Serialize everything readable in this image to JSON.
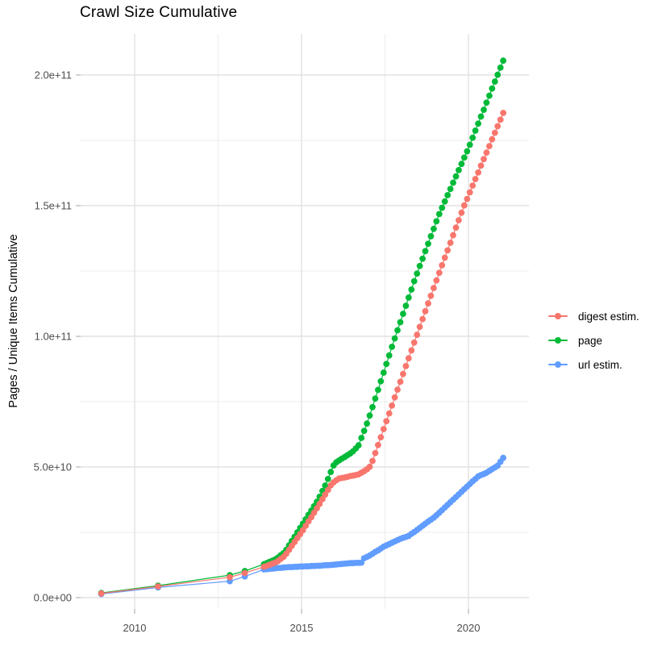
{
  "title": "Crawl Size Cumulative",
  "y_axis": {
    "label": "Pages / Unique Items Cumulative",
    "ticks": [
      {
        "v": 0,
        "label": "0.0e+00"
      },
      {
        "v": 50,
        "label": "5.0e+10"
      },
      {
        "v": 100,
        "label": "1.0e+11"
      },
      {
        "v": 150,
        "label": "1.5e+11"
      },
      {
        "v": 200,
        "label": "2.0e+11"
      }
    ],
    "minor_values": [
      25,
      75,
      125,
      175
    ]
  },
  "x_axis": {
    "ticks": [
      {
        "v": 2010,
        "label": "2010"
      },
      {
        "v": 2015,
        "label": "2015"
      },
      {
        "v": 2020,
        "label": "2020"
      }
    ],
    "minor_values": [
      2012.5,
      2017.5
    ]
  },
  "legend": {
    "items": [
      {
        "label": "digest estim.",
        "color": "#F8766D"
      },
      {
        "label": "page",
        "color": "#00BA38"
      },
      {
        "label": "url estim.",
        "color": "#619CFF"
      }
    ]
  },
  "colors": {
    "grid_major": "#E2E2E2",
    "grid_minor": "#EDEDED",
    "tick_mark": "#B3B3B3",
    "tick_text": "#4D4D4D",
    "title_text": "#000000"
  },
  "chart_data": {
    "type": "scatter",
    "title": "Crawl Size Cumulative",
    "xlabel": "",
    "ylabel": "Pages / Unique Items Cumulative",
    "x_unit": "year",
    "y_unit": "items, billions (1e9)",
    "xlim": [
      2008.4,
      2021.8
    ],
    "ylim_billion": [
      0,
      213
    ],
    "grid": true,
    "legend_position": "right",
    "point_with_line": true,
    "draw_order": [
      "page",
      "url estim.",
      "digest estim."
    ],
    "series": [
      {
        "name": "page",
        "color": "#00BA38",
        "points": [
          [
            2009.0,
            1.8
          ],
          [
            2010.7,
            4.6
          ],
          [
            2012.85,
            8.6
          ],
          [
            2013.3,
            10.2
          ],
          [
            2013.875,
            12.8
          ],
          [
            2013.958,
            13.2
          ],
          [
            2014.042,
            13.7
          ],
          [
            2014.125,
            14.1
          ],
          [
            2014.208,
            14.6
          ],
          [
            2014.292,
            15.3
          ],
          [
            2014.375,
            16.2
          ],
          [
            2014.458,
            17.0
          ],
          [
            2014.542,
            18.3
          ],
          [
            2014.625,
            20.0
          ],
          [
            2014.708,
            21.7
          ],
          [
            2014.792,
            23.3
          ],
          [
            2014.875,
            25.0
          ],
          [
            2014.958,
            26.7
          ],
          [
            2015.042,
            28.3
          ],
          [
            2015.125,
            30.0
          ],
          [
            2015.208,
            31.7
          ],
          [
            2015.292,
            33.3
          ],
          [
            2015.375,
            35.0
          ],
          [
            2015.458,
            36.7
          ],
          [
            2015.542,
            38.6
          ],
          [
            2015.625,
            40.8
          ],
          [
            2015.708,
            42.9
          ],
          [
            2015.792,
            45.4
          ],
          [
            2015.875,
            48.1
          ],
          [
            2015.958,
            50.6
          ],
          [
            2016.042,
            51.8
          ],
          [
            2016.125,
            52.5
          ],
          [
            2016.208,
            53.2
          ],
          [
            2016.292,
            53.8
          ],
          [
            2016.375,
            54.5
          ],
          [
            2016.458,
            55.2
          ],
          [
            2016.542,
            56.0
          ],
          [
            2016.625,
            57.1
          ],
          [
            2016.708,
            58.3
          ],
          [
            2016.792,
            61.1
          ],
          [
            2016.875,
            63.8
          ],
          [
            2016.958,
            66.6
          ],
          [
            2017.042,
            69.7
          ],
          [
            2017.125,
            72.9
          ],
          [
            2017.208,
            76.2
          ],
          [
            2017.292,
            79.5
          ],
          [
            2017.375,
            82.8
          ],
          [
            2017.458,
            86.1
          ],
          [
            2017.542,
            89.4
          ],
          [
            2017.625,
            92.7
          ],
          [
            2017.708,
            96.0
          ],
          [
            2017.792,
            99.2
          ],
          [
            2017.875,
            102.3
          ],
          [
            2017.958,
            105.4
          ],
          [
            2018.042,
            108.6
          ],
          [
            2018.125,
            111.7
          ],
          [
            2018.208,
            114.8
          ],
          [
            2018.292,
            117.9
          ],
          [
            2018.375,
            121.1
          ],
          [
            2018.458,
            124.0
          ],
          [
            2018.542,
            126.9
          ],
          [
            2018.625,
            129.7
          ],
          [
            2018.708,
            132.6
          ],
          [
            2018.792,
            135.4
          ],
          [
            2018.875,
            138.3
          ],
          [
            2018.958,
            141.1
          ],
          [
            2019.042,
            144.0
          ],
          [
            2019.125,
            146.8
          ],
          [
            2019.208,
            149.2
          ],
          [
            2019.292,
            151.6
          ],
          [
            2019.375,
            154.0
          ],
          [
            2019.458,
            156.4
          ],
          [
            2019.542,
            158.8
          ],
          [
            2019.625,
            161.2
          ],
          [
            2019.708,
            163.6
          ],
          [
            2019.792,
            166.0
          ],
          [
            2019.875,
            168.4
          ],
          [
            2019.958,
            170.8
          ],
          [
            2020.042,
            173.3
          ],
          [
            2020.125,
            176.0
          ],
          [
            2020.208,
            178.7
          ],
          [
            2020.292,
            181.4
          ],
          [
            2020.375,
            184.1
          ],
          [
            2020.458,
            186.7
          ],
          [
            2020.542,
            189.4
          ],
          [
            2020.625,
            192.1
          ],
          [
            2020.708,
            194.8
          ],
          [
            2020.792,
            197.5
          ],
          [
            2020.875,
            200.1
          ],
          [
            2020.958,
            202.8
          ],
          [
            2021.042,
            205.5
          ]
        ]
      },
      {
        "name": "url estim.",
        "color": "#619CFF",
        "points": [
          [
            2009.0,
            1.4
          ],
          [
            2010.7,
            3.9
          ],
          [
            2012.85,
            6.3
          ],
          [
            2013.3,
            8.1
          ],
          [
            2013.875,
            10.8
          ],
          [
            2013.958,
            10.9
          ],
          [
            2014.042,
            11.0
          ],
          [
            2014.125,
            11.1
          ],
          [
            2014.208,
            11.2
          ],
          [
            2014.292,
            11.4
          ],
          [
            2014.375,
            11.4
          ],
          [
            2014.458,
            11.5
          ],
          [
            2014.542,
            11.6
          ],
          [
            2014.625,
            11.7
          ],
          [
            2014.708,
            11.7
          ],
          [
            2014.792,
            11.8
          ],
          [
            2014.875,
            11.8
          ],
          [
            2014.958,
            11.9
          ],
          [
            2015.042,
            11.9
          ],
          [
            2015.125,
            12.0
          ],
          [
            2015.208,
            12.0
          ],
          [
            2015.292,
            12.1
          ],
          [
            2015.375,
            12.1
          ],
          [
            2015.458,
            12.2
          ],
          [
            2015.542,
            12.2
          ],
          [
            2015.625,
            12.3
          ],
          [
            2015.708,
            12.4
          ],
          [
            2015.792,
            12.4
          ],
          [
            2015.875,
            12.5
          ],
          [
            2015.958,
            12.6
          ],
          [
            2016.042,
            12.7
          ],
          [
            2016.125,
            12.8
          ],
          [
            2016.208,
            12.9
          ],
          [
            2016.292,
            13.0
          ],
          [
            2016.375,
            13.1
          ],
          [
            2016.458,
            13.2
          ],
          [
            2016.542,
            13.2
          ],
          [
            2016.625,
            13.3
          ],
          [
            2016.708,
            13.3
          ],
          [
            2016.792,
            13.4
          ],
          [
            2016.875,
            15.1
          ],
          [
            2016.958,
            15.6
          ],
          [
            2017.042,
            16.1
          ],
          [
            2017.125,
            16.8
          ],
          [
            2017.208,
            17.5
          ],
          [
            2017.292,
            18.1
          ],
          [
            2017.375,
            18.8
          ],
          [
            2017.458,
            19.5
          ],
          [
            2017.542,
            20.0
          ],
          [
            2017.625,
            20.5
          ],
          [
            2017.708,
            21.0
          ],
          [
            2017.792,
            21.5
          ],
          [
            2017.875,
            22.0
          ],
          [
            2017.958,
            22.5
          ],
          [
            2018.042,
            22.9
          ],
          [
            2018.125,
            23.2
          ],
          [
            2018.208,
            23.6
          ],
          [
            2018.292,
            24.4
          ],
          [
            2018.375,
            25.1
          ],
          [
            2018.458,
            25.9
          ],
          [
            2018.542,
            26.7
          ],
          [
            2018.625,
            27.5
          ],
          [
            2018.708,
            28.3
          ],
          [
            2018.792,
            29.1
          ],
          [
            2018.875,
            29.8
          ],
          [
            2018.958,
            30.6
          ],
          [
            2019.042,
            31.5
          ],
          [
            2019.125,
            32.5
          ],
          [
            2019.208,
            33.5
          ],
          [
            2019.292,
            34.5
          ],
          [
            2019.375,
            35.5
          ],
          [
            2019.458,
            36.5
          ],
          [
            2019.542,
            37.5
          ],
          [
            2019.625,
            38.5
          ],
          [
            2019.708,
            39.5
          ],
          [
            2019.792,
            40.5
          ],
          [
            2019.875,
            41.5
          ],
          [
            2019.958,
            42.5
          ],
          [
            2020.042,
            43.5
          ],
          [
            2020.125,
            44.5
          ],
          [
            2020.208,
            45.4
          ],
          [
            2020.292,
            46.4
          ],
          [
            2020.375,
            46.9
          ],
          [
            2020.458,
            47.3
          ],
          [
            2020.542,
            47.8
          ],
          [
            2020.625,
            48.5
          ],
          [
            2020.708,
            49.2
          ],
          [
            2020.792,
            49.8
          ],
          [
            2020.875,
            50.5
          ],
          [
            2020.958,
            52.0
          ],
          [
            2021.042,
            53.5
          ]
        ]
      },
      {
        "name": "digest estim.",
        "color": "#F8766D",
        "points": [
          [
            2009.0,
            1.6
          ],
          [
            2010.7,
            4.3
          ],
          [
            2012.85,
            7.8
          ],
          [
            2013.3,
            9.4
          ],
          [
            2013.875,
            11.8
          ],
          [
            2013.958,
            12.2
          ],
          [
            2014.042,
            12.6
          ],
          [
            2014.125,
            13.0
          ],
          [
            2014.208,
            13.4
          ],
          [
            2014.292,
            14.0
          ],
          [
            2014.375,
            14.8
          ],
          [
            2014.458,
            15.6
          ],
          [
            2014.542,
            16.8
          ],
          [
            2014.625,
            18.3
          ],
          [
            2014.708,
            19.8
          ],
          [
            2014.792,
            21.3
          ],
          [
            2014.875,
            22.8
          ],
          [
            2014.958,
            24.3
          ],
          [
            2015.042,
            25.8
          ],
          [
            2015.125,
            27.5
          ],
          [
            2015.208,
            29.2
          ],
          [
            2015.292,
            30.8
          ],
          [
            2015.375,
            32.5
          ],
          [
            2015.458,
            34.2
          ],
          [
            2015.542,
            35.9
          ],
          [
            2015.625,
            37.7
          ],
          [
            2015.708,
            39.4
          ],
          [
            2015.792,
            41.2
          ],
          [
            2015.875,
            43.0
          ],
          [
            2015.958,
            44.1
          ],
          [
            2016.042,
            44.9
          ],
          [
            2016.125,
            45.6
          ],
          [
            2016.208,
            45.8
          ],
          [
            2016.292,
            46.0
          ],
          [
            2016.375,
            46.2
          ],
          [
            2016.458,
            46.5
          ],
          [
            2016.542,
            46.7
          ],
          [
            2016.625,
            46.9
          ],
          [
            2016.708,
            47.2
          ],
          [
            2016.792,
            47.8
          ],
          [
            2016.875,
            48.4
          ],
          [
            2016.958,
            49.1
          ],
          [
            2017.042,
            50.1
          ],
          [
            2017.125,
            52.3
          ],
          [
            2017.208,
            55.3
          ],
          [
            2017.292,
            58.4
          ],
          [
            2017.375,
            61.4
          ],
          [
            2017.458,
            64.5
          ],
          [
            2017.542,
            67.5
          ],
          [
            2017.625,
            70.5
          ],
          [
            2017.708,
            73.5
          ],
          [
            2017.792,
            76.6
          ],
          [
            2017.875,
            79.6
          ],
          [
            2017.958,
            82.6
          ],
          [
            2018.042,
            85.6
          ],
          [
            2018.125,
            88.6
          ],
          [
            2018.208,
            91.6
          ],
          [
            2018.292,
            94.6
          ],
          [
            2018.375,
            97.6
          ],
          [
            2018.458,
            100.6
          ],
          [
            2018.542,
            103.6
          ],
          [
            2018.625,
            106.6
          ],
          [
            2018.708,
            109.6
          ],
          [
            2018.792,
            112.6
          ],
          [
            2018.875,
            115.5
          ],
          [
            2018.958,
            118.5
          ],
          [
            2019.042,
            121.4
          ],
          [
            2019.125,
            124.3
          ],
          [
            2019.208,
            127.2
          ],
          [
            2019.292,
            130.1
          ],
          [
            2019.375,
            132.9
          ],
          [
            2019.458,
            135.8
          ],
          [
            2019.542,
            138.7
          ],
          [
            2019.625,
            141.6
          ],
          [
            2019.708,
            144.4
          ],
          [
            2019.792,
            147.3
          ],
          [
            2019.875,
            150.1
          ],
          [
            2019.958,
            152.6
          ],
          [
            2020.042,
            155.1
          ],
          [
            2020.125,
            157.7
          ],
          [
            2020.208,
            160.2
          ],
          [
            2020.292,
            162.7
          ],
          [
            2020.375,
            165.3
          ],
          [
            2020.458,
            167.8
          ],
          [
            2020.542,
            170.3
          ],
          [
            2020.625,
            172.8
          ],
          [
            2020.708,
            175.4
          ],
          [
            2020.792,
            177.9
          ],
          [
            2020.875,
            180.4
          ],
          [
            2020.958,
            182.9
          ],
          [
            2021.042,
            185.5
          ]
        ]
      }
    ]
  }
}
